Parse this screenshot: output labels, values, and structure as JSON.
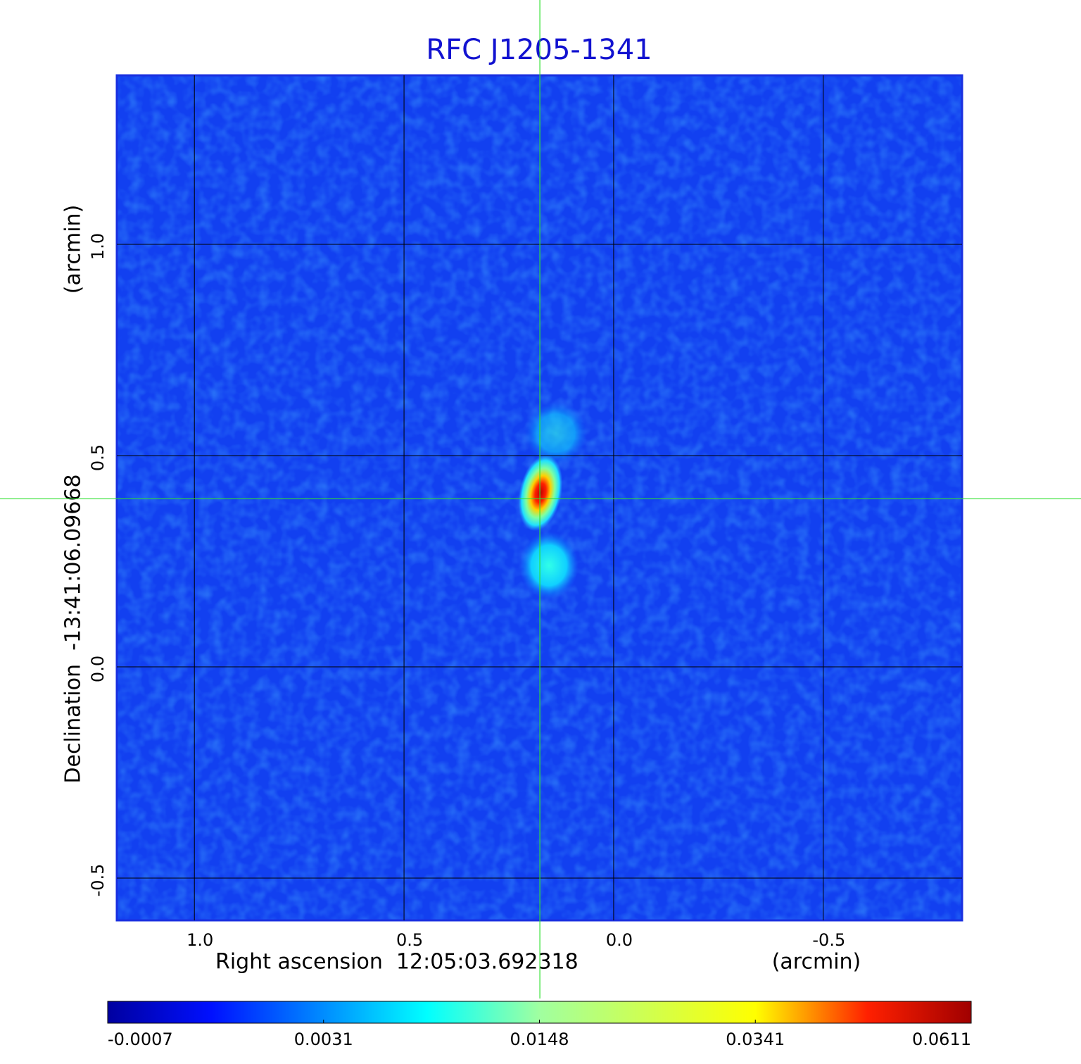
{
  "chart_data": {
    "type": "image",
    "title": "RFC J1205-1341",
    "xlabel": "Right ascension  12:05:03.692318",
    "xunit": "(arcmin)",
    "ylabel": "Declination  -13:41:06.09668",
    "yunit": "(arcmin)",
    "xlim": [
      1.185,
      -0.831
    ],
    "ylim": [
      -0.6,
      1.4
    ],
    "xticks": [
      {
        "value": 1,
        "label": "1.0"
      },
      0.5,
      {
        "value": 0,
        "label": "0.0"
      },
      -0.5
    ],
    "yticks": [
      {
        "value": -0.5,
        "label": "-0.5"
      },
      {
        "value": 0,
        "label": "0.0"
      },
      0.5,
      {
        "value": 1,
        "label": "1.0"
      }
    ],
    "grid": true,
    "crosshair": {
      "x": 0.176,
      "y": 0.398
    },
    "colorbar_ticks": [
      -0.0007,
      0.0031,
      0.0148,
      0.0341,
      0.0611
    ]
  }
}
